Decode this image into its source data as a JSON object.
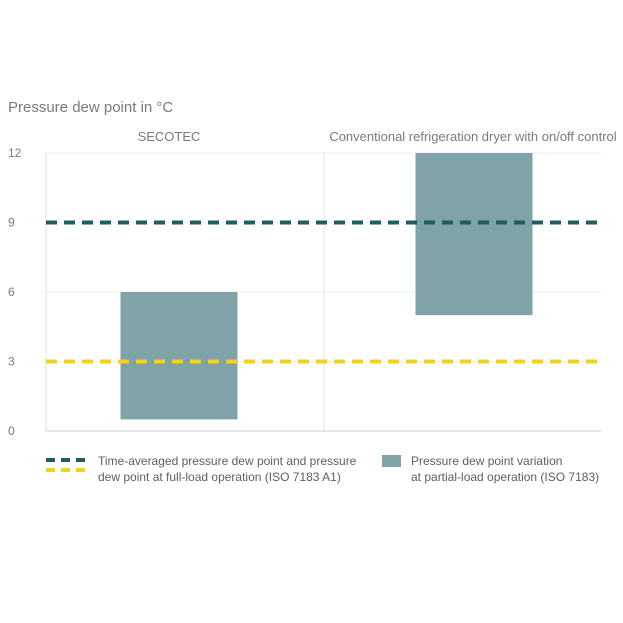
{
  "chart_data": {
    "type": "bar",
    "title": "Pressure dew point in °C",
    "categories": [
      "SECOTEC",
      "Conventional refrigeration dryer with on/off control"
    ],
    "ylim": [
      0,
      12
    ],
    "yticks": [
      0,
      3,
      6,
      9,
      12
    ],
    "series": [
      {
        "name": "Pressure dew point variation at partial-load operation (ISO 7183)",
        "type": "range",
        "color": "#7fa3a6",
        "ranges": [
          [
            0.5,
            6
          ],
          [
            5,
            12
          ]
        ]
      }
    ],
    "reference_lines": [
      {
        "label": "Time-averaged pressure dew point and pressure dew point at full-load operation (ISO 7183 A1)",
        "segments": [
          {
            "category": "Conventional refrigeration dryer with on/off control",
            "value": 9,
            "color": "#1e5e5e"
          },
          {
            "category": "SECOTEC",
            "value": 3,
            "color": "#f2d21c"
          }
        ]
      }
    ],
    "legend": [
      {
        "icon": "dashed-line-icon",
        "text_line1": "Time-averaged pressure dew point and pressure",
        "text_line2": "dew point at full-load operation (ISO 7183 A1)"
      },
      {
        "icon": "filled-box-icon",
        "text_line1": "Pressure dew point variation",
        "text_line2": "at partial-load operation (ISO 7183)"
      }
    ],
    "grid": true,
    "legend_position": "bottom"
  }
}
